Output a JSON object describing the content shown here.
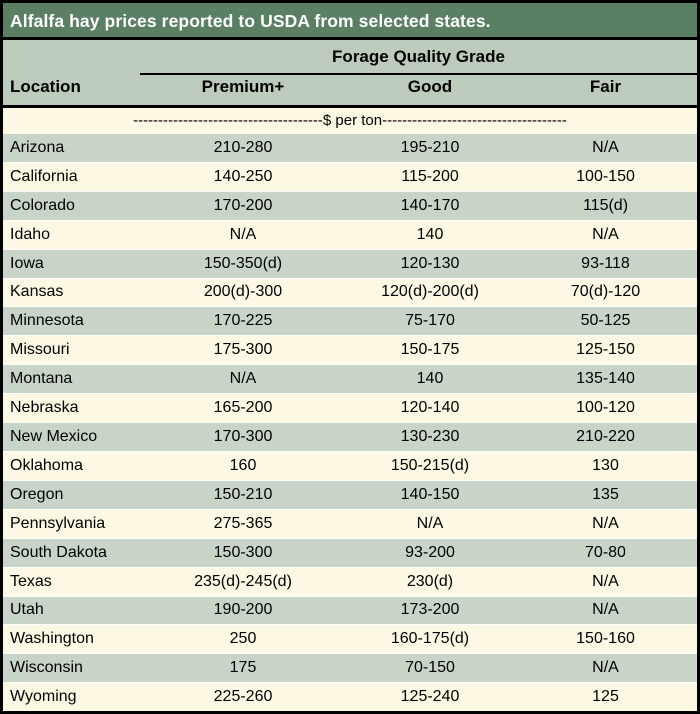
{
  "title": "Alfalfa hay prices reported to USDA from selected states.",
  "header": {
    "group_label": "Forage Quality Grade",
    "columns": [
      "Location",
      "Premium+",
      "Good",
      "Fair"
    ]
  },
  "unit_row_label": "--------------------------------------$ per ton-------------------------------------",
  "colors": {
    "title_bg": "#5b7f63",
    "title_text": "#ffffff",
    "header_bg": "#bdcbbc",
    "row_green": "#c7d4c7",
    "row_cream": "#fdf8e4",
    "border": "#000000",
    "body_text": "#000000"
  },
  "chart_data": {
    "type": "table",
    "title": "Alfalfa hay prices reported to USDA from selected states.",
    "group_header": "Forage Quality Grade",
    "unit": "$ per ton",
    "columns": [
      "Location",
      "Premium+",
      "Good",
      "Fair"
    ],
    "rows": [
      [
        "Arizona",
        "210-280",
        "195-210",
        "N/A"
      ],
      [
        "California",
        "140-250",
        "115-200",
        "100-150"
      ],
      [
        "Colorado",
        "170-200",
        "140-170",
        "115(d)"
      ],
      [
        "Idaho",
        "N/A",
        "140",
        "N/A"
      ],
      [
        "Iowa",
        "150-350(d)",
        "120-130",
        "93-118"
      ],
      [
        "Kansas",
        "200(d)-300",
        "120(d)-200(d)",
        "70(d)-120"
      ],
      [
        "Minnesota",
        "170-225",
        "75-170",
        "50-125"
      ],
      [
        "Missouri",
        "175-300",
        "150-175",
        "125-150"
      ],
      [
        "Montana",
        "N/A",
        "140",
        "135-140"
      ],
      [
        "Nebraska",
        "165-200",
        "120-140",
        "100-120"
      ],
      [
        "New Mexico",
        "170-300",
        "130-230",
        "210-220"
      ],
      [
        "Oklahoma",
        "160",
        "150-215(d)",
        "130"
      ],
      [
        "Oregon",
        "150-210",
        "140-150",
        "135"
      ],
      [
        "Pennsylvania",
        "275-365",
        "N/A",
        "N/A"
      ],
      [
        "South Dakota",
        "150-300",
        "93-200",
        "70-80"
      ],
      [
        "Texas",
        "235(d)-245(d)",
        "230(d)",
        "N/A"
      ],
      [
        "Utah",
        "190-200",
        "173-200",
        "N/A"
      ],
      [
        "Washington",
        "250",
        "160-175(d)",
        "150-160"
      ],
      [
        "Wisconsin",
        "175",
        "70-150",
        "N/A"
      ],
      [
        "Wyoming",
        "225-260",
        "125-240",
        "125"
      ]
    ]
  }
}
